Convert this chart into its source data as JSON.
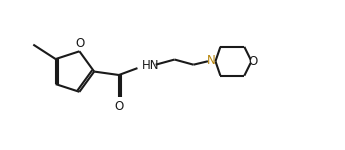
{
  "background_color": "#ffffff",
  "line_color": "#1a1a1a",
  "n_color": "#b8860b",
  "o_color": "#1a1a1a",
  "line_width": 1.5,
  "figsize": [
    3.45,
    1.5
  ],
  "dpi": 100,
  "xlim": [
    0,
    10
  ],
  "ylim": [
    0,
    4.3
  ]
}
